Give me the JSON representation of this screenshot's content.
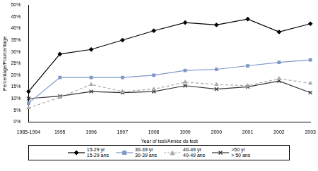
{
  "chart_data": {
    "type": "line",
    "x_label": "Year of test/Année du test",
    "y_label": "Percentage/Pourcentage",
    "categories": [
      "1985-1994",
      "1995",
      "1996",
      "1997",
      "1998",
      "1999",
      "2000",
      "2001",
      "2002",
      "2003"
    ],
    "series": [
      {
        "name": "15-29 yr\n15-29 ans",
        "color": "#000000",
        "marker": "diamond",
        "line_style": "solid",
        "values": [
          13,
          29,
          31,
          35,
          39,
          42.5,
          41.5,
          44,
          38.5,
          42
        ]
      },
      {
        "name": "30-39 yr\n30-39 ans",
        "color": "#7f96c8",
        "marker": "square",
        "line_style": "solid",
        "values": [
          8,
          19,
          19,
          19,
          20,
          22,
          22.5,
          24,
          25.5,
          26.5
        ]
      },
      {
        "name": "40-49 yr\n40-49 ans",
        "color": "#aaaaaa",
        "marker": "triangle",
        "line_style": "dashed",
        "values": [
          6,
          10.5,
          16,
          13,
          14,
          17,
          16,
          15.5,
          18.5,
          16.5
        ]
      },
      {
        "name": ">50 yr\n> 50 ans",
        "color": "#333333",
        "marker": "x",
        "line_style": "solid",
        "values": [
          10,
          11,
          13,
          12.5,
          13,
          15.5,
          14,
          15,
          17.5,
          12.5
        ]
      }
    ],
    "ylim": [
      0,
      50
    ],
    "yticks": [
      {
        "value": 0,
        "label": "0%"
      },
      {
        "value": 5,
        "label": "5%"
      },
      {
        "value": 10,
        "label": "10%"
      },
      {
        "value": 15,
        "label": "15%"
      },
      {
        "value": 20,
        "label": "20%"
      },
      {
        "value": 25,
        "label": "25%"
      },
      {
        "value": 30,
        "label": "30%"
      },
      {
        "value": 35,
        "label": "35%"
      },
      {
        "value": 40,
        "label": "40%"
      },
      {
        "value": 45,
        "label": "45%"
      },
      {
        "value": 50,
        "label": "50%"
      }
    ],
    "grid": false,
    "legend": "bottom"
  }
}
